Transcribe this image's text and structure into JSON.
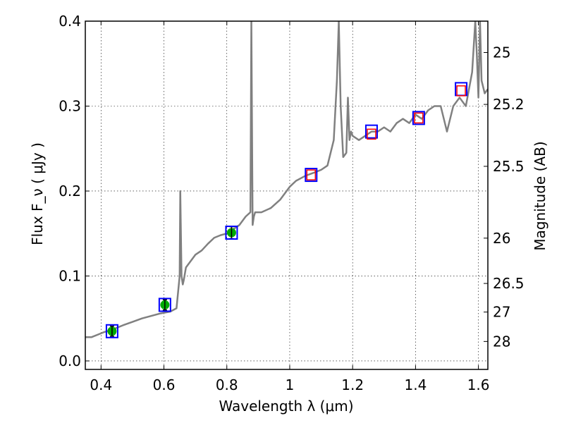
{
  "chart_data": {
    "type": "line",
    "xlabel": "Wavelength  λ (μm)",
    "ylabel": "Flux  F_ν  ( μJy )",
    "ylabel_right": "Magnitude (AB)",
    "xlim": [
      0.35,
      1.63
    ],
    "ylim": [
      -0.01,
      0.4
    ],
    "x_ticks": [
      {
        "v": 0.4,
        "label": "0.4"
      },
      {
        "v": 0.6,
        "label": "0.6"
      },
      {
        "v": 0.8,
        "label": "0.8"
      },
      {
        "v": 1.0,
        "label": "1"
      },
      {
        "v": 1.2,
        "label": "1.2"
      },
      {
        "v": 1.4,
        "label": "1.4"
      },
      {
        "v": 1.6,
        "label": "1.6"
      }
    ],
    "y_ticks": [
      {
        "v": 0.0,
        "label": "0.0"
      },
      {
        "v": 0.1,
        "label": "0.1"
      },
      {
        "v": 0.2,
        "label": "0.2"
      },
      {
        "v": 0.3,
        "label": "0.3"
      },
      {
        "v": 0.4,
        "label": "0.4"
      }
    ],
    "right_ticks": [
      {
        "mag": 25.0,
        "label": "25"
      },
      {
        "mag": 25.2,
        "label": "25.2"
      },
      {
        "mag": 25.5,
        "label": "25.5"
      },
      {
        "mag": 26.0,
        "label": "26"
      },
      {
        "mag": 26.5,
        "label": "26.5"
      },
      {
        "mag": 27.0,
        "label": "27"
      },
      {
        "mag": 28.0,
        "label": "28"
      }
    ],
    "grid": true,
    "series": [
      {
        "kind": "model_spectrum",
        "color": "#808080",
        "x": [
          0.35,
          0.37,
          0.39,
          0.41,
          0.43,
          0.45,
          0.47,
          0.5,
          0.53,
          0.56,
          0.59,
          0.62,
          0.64,
          0.65,
          0.652,
          0.656,
          0.66,
          0.663,
          0.67,
          0.69,
          0.7,
          0.72,
          0.74,
          0.76,
          0.78,
          0.8,
          0.82,
          0.84,
          0.86,
          0.875,
          0.878,
          0.882,
          0.886,
          0.89,
          0.91,
          0.94,
          0.97,
          1.0,
          1.02,
          1.05,
          1.08,
          1.1,
          1.12,
          1.14,
          1.15,
          1.156,
          1.162,
          1.17,
          1.18,
          1.185,
          1.19,
          1.195,
          1.2,
          1.22,
          1.24,
          1.26,
          1.28,
          1.3,
          1.32,
          1.34,
          1.36,
          1.38,
          1.4,
          1.42,
          1.44,
          1.46,
          1.48,
          1.5,
          1.52,
          1.54,
          1.56,
          1.58,
          1.59,
          1.595,
          1.6,
          1.605,
          1.61,
          1.62,
          1.63
        ],
        "y": [
          0.028,
          0.028,
          0.031,
          0.034,
          0.036,
          0.039,
          0.042,
          0.046,
          0.05,
          0.053,
          0.056,
          0.058,
          0.062,
          0.1,
          0.2,
          0.1,
          0.09,
          0.095,
          0.11,
          0.12,
          0.125,
          0.13,
          0.138,
          0.145,
          0.148,
          0.15,
          0.155,
          0.16,
          0.17,
          0.175,
          0.4,
          0.16,
          0.17,
          0.175,
          0.175,
          0.18,
          0.19,
          0.205,
          0.212,
          0.218,
          0.222,
          0.225,
          0.23,
          0.26,
          0.33,
          0.4,
          0.3,
          0.24,
          0.245,
          0.31,
          0.26,
          0.27,
          0.265,
          0.26,
          0.265,
          0.27,
          0.27,
          0.275,
          0.27,
          0.28,
          0.285,
          0.28,
          0.29,
          0.285,
          0.295,
          0.3,
          0.3,
          0.27,
          0.3,
          0.31,
          0.3,
          0.34,
          0.4,
          0.36,
          0.31,
          0.4,
          0.33,
          0.315,
          0.32
        ]
      },
      {
        "kind": "observed_points",
        "color": "#00aa00",
        "x": [
          0.435,
          0.603,
          0.815
        ],
        "y": [
          0.035,
          0.066,
          0.151
        ],
        "err": [
          0.006,
          0.006,
          0.007
        ]
      },
      {
        "kind": "model_boxes",
        "color": "#0000ff",
        "x": [
          0.435,
          0.603,
          0.815,
          1.068,
          1.26,
          1.41,
          1.545
        ],
        "y": [
          0.035,
          0.066,
          0.151,
          0.219,
          0.27,
          0.286,
          0.32
        ]
      },
      {
        "kind": "upper_limit_boxes",
        "color": "#ff0000",
        "x": [
          1.068,
          1.26,
          1.41,
          1.545
        ],
        "y": [
          0.219,
          0.267,
          0.286,
          0.318
        ]
      }
    ]
  }
}
